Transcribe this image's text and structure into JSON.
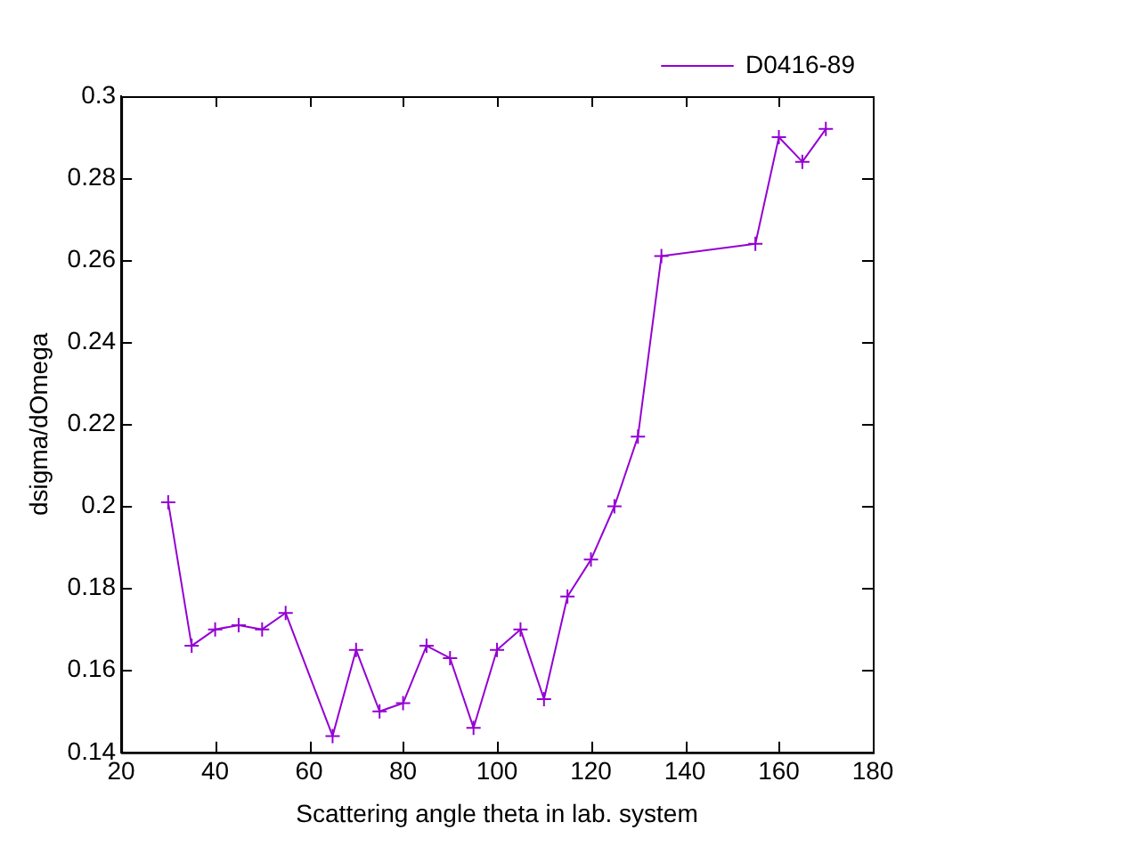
{
  "chart_data": {
    "type": "line",
    "xlabel": "Scattering angle theta in lab. system",
    "ylabel": "dsigma/dOmega",
    "x": [
      30,
      35,
      40,
      45,
      50,
      55,
      65,
      70,
      75,
      80,
      85,
      90,
      95,
      100,
      105,
      110,
      115,
      120,
      125,
      130,
      135,
      155,
      160,
      165,
      170
    ],
    "series": [
      {
        "name": "D0416-89",
        "color": "#9400d3",
        "values": [
          0.201,
          0.166,
          0.17,
          0.171,
          0.17,
          0.174,
          0.144,
          0.165,
          0.15,
          0.152,
          0.166,
          0.163,
          0.146,
          0.165,
          0.17,
          0.153,
          0.178,
          0.187,
          0.2,
          0.217,
          0.261,
          0.264,
          0.29,
          0.284,
          0.292
        ]
      }
    ],
    "xlim": [
      20,
      180
    ],
    "xticks": [
      20,
      40,
      60,
      80,
      100,
      120,
      140,
      160,
      180
    ],
    "ylim": [
      0.14,
      0.3
    ],
    "yticks": [
      0.14,
      0.16,
      0.18,
      0.2,
      0.22,
      0.24,
      0.26,
      0.28,
      0.3
    ],
    "grid": false,
    "legend": "top right",
    "marker": "cross",
    "line_style": "solid"
  }
}
